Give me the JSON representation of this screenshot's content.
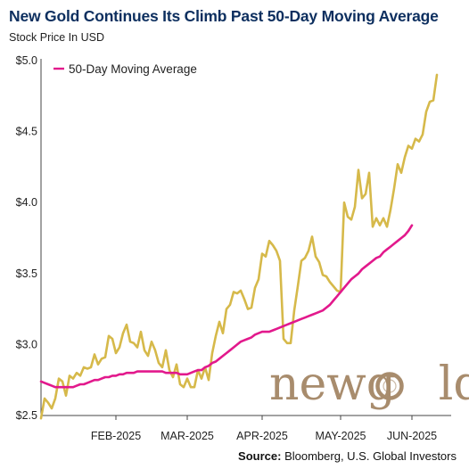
{
  "header": {
    "title": "New Gold Continues Its Climb Past 50-Day Moving Average",
    "subtitle": "Stock Price In USD"
  },
  "footer": {
    "source_label": "Source:",
    "source_text": "Bloomberg, U.S. Global Investors"
  },
  "logo": {
    "text_part1": "new",
    "text_part2": "g",
    "text_part3": "ld",
    "color": "#a88c6d"
  },
  "chart_data": {
    "type": "line",
    "title": "New Gold Continues Its Climb Past 50-Day Moving Average",
    "ylabel": "Stock Price In USD",
    "ylim": [
      2.5,
      5.0
    ],
    "y_ticks": [
      "$2.5",
      "$3.0",
      "$3.5",
      "$4.0",
      "$4.5",
      "$5.0"
    ],
    "y_tick_values": [
      2.5,
      3.0,
      3.5,
      4.0,
      4.5,
      5.0
    ],
    "x_tick_labels": [
      "FEB-2025",
      "MAR-2025",
      "APR-2025",
      "MAY-2025",
      "JUN-2025"
    ],
    "x_tick_values": [
      21,
      41,
      62,
      84,
      104
    ],
    "x_range": [
      0,
      115
    ],
    "legend_position": "top-left",
    "series": [
      {
        "name": "",
        "color": "#d6b94a",
        "values": [
          2.48,
          2.62,
          2.59,
          2.55,
          2.62,
          2.76,
          2.74,
          2.64,
          2.78,
          2.76,
          2.8,
          2.78,
          2.84,
          2.83,
          2.84,
          2.93,
          2.86,
          2.9,
          2.91,
          3.06,
          3.04,
          2.94,
          2.98,
          3.08,
          3.14,
          3.02,
          3.01,
          2.98,
          3.09,
          2.96,
          2.92,
          3.02,
          2.96,
          2.87,
          2.84,
          2.96,
          2.82,
          2.77,
          2.86,
          2.72,
          2.7,
          2.76,
          2.7,
          2.7,
          2.82,
          2.76,
          2.84,
          2.75,
          2.94,
          3.06,
          3.16,
          3.08,
          3.25,
          3.28,
          3.37,
          3.36,
          3.38,
          3.32,
          3.25,
          3.26,
          3.4,
          3.46,
          3.64,
          3.62,
          3.73,
          3.7,
          3.66,
          3.59,
          3.04,
          3.01,
          3.01,
          3.24,
          3.41,
          3.59,
          3.61,
          3.66,
          3.76,
          3.62,
          3.58,
          3.49,
          3.48,
          3.44,
          3.41,
          3.38,
          3.37,
          4.0,
          3.9,
          3.88,
          3.97,
          4.23,
          4.03,
          4.06,
          4.21,
          3.83,
          3.89,
          3.84,
          3.89,
          3.83,
          3.95,
          4.1,
          4.27,
          4.21,
          4.32,
          4.4,
          4.38,
          4.45,
          4.43,
          4.48,
          4.64,
          4.71,
          4.72,
          4.9
        ]
      },
      {
        "name": "50-Day Moving Average",
        "color": "#e2198c",
        "values": [
          2.74,
          2.73,
          2.72,
          2.71,
          2.7,
          2.7,
          2.7,
          2.7,
          2.7,
          2.7,
          2.71,
          2.72,
          2.72,
          2.73,
          2.74,
          2.75,
          2.75,
          2.76,
          2.77,
          2.77,
          2.78,
          2.78,
          2.79,
          2.79,
          2.8,
          2.8,
          2.8,
          2.81,
          2.81,
          2.81,
          2.81,
          2.81,
          2.81,
          2.81,
          2.81,
          2.8,
          2.8,
          2.8,
          2.8,
          2.79,
          2.79,
          2.79,
          2.8,
          2.81,
          2.82,
          2.82,
          2.84,
          2.85,
          2.87,
          2.88,
          2.9,
          2.92,
          2.94,
          2.96,
          2.98,
          3.0,
          3.02,
          3.03,
          3.04,
          3.05,
          3.07,
          3.08,
          3.09,
          3.09,
          3.09,
          3.1,
          3.11,
          3.12,
          3.13,
          3.14,
          3.15,
          3.16,
          3.17,
          3.18,
          3.19,
          3.2,
          3.21,
          3.22,
          3.23,
          3.24,
          3.26,
          3.28,
          3.31,
          3.34,
          3.37,
          3.4,
          3.43,
          3.46,
          3.48,
          3.5,
          3.53,
          3.55,
          3.57,
          3.59,
          3.61,
          3.62,
          3.65,
          3.67,
          3.69,
          3.71,
          3.73,
          3.75,
          3.77,
          3.8,
          3.84
        ]
      }
    ]
  }
}
